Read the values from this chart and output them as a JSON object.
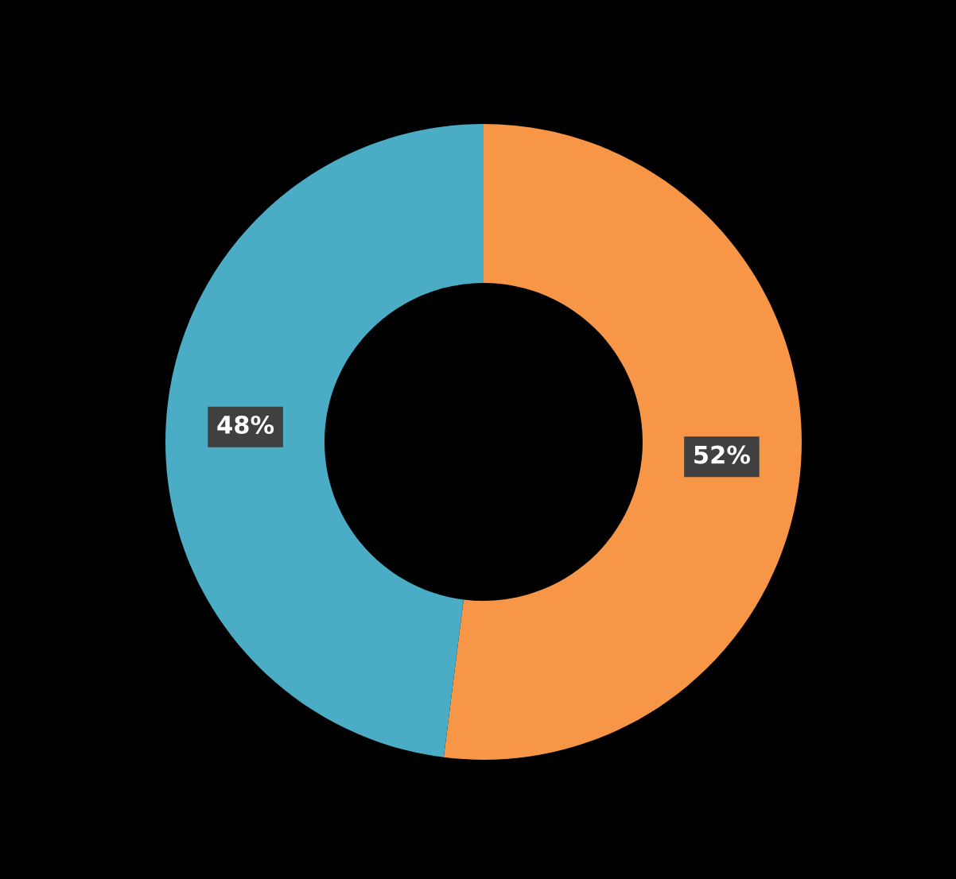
{
  "chart_data": {
    "type": "donut",
    "categories": [
      null,
      null
    ],
    "values": [
      52,
      48
    ],
    "colors": [
      "#f79646",
      "#4bacc6"
    ],
    "value_labels": [
      "52%",
      "48%"
    ]
  }
}
